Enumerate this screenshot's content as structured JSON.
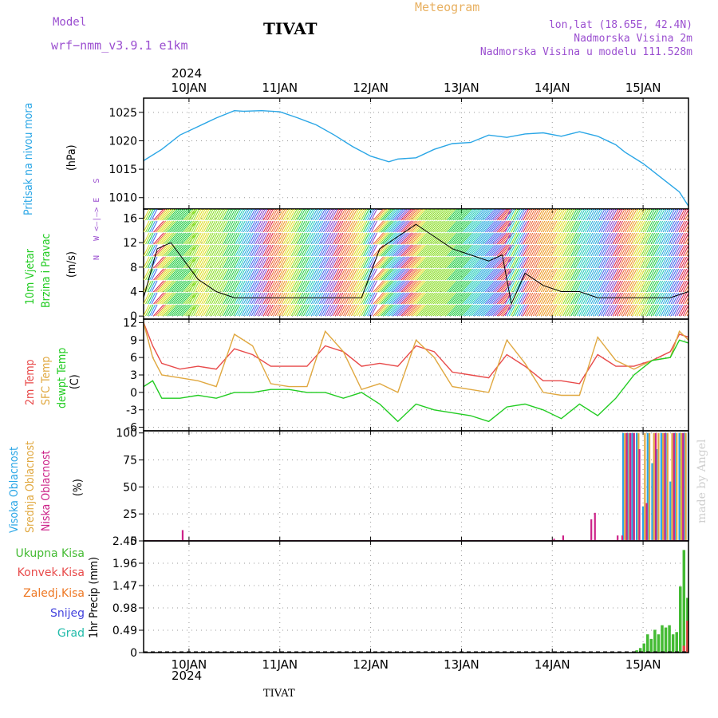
{
  "header": {
    "model_label": "Model",
    "model_name": "wrf−nmm_v3.9.1  e1km",
    "station": "TIVAT",
    "meteogram": "Meteogram",
    "lonlat": "lon,lat (18.65E, 42.4N)",
    "elevation": "Nadmorska Visina 2m",
    "model_elevation": "Nadmorska Visina u modelu 111.528m",
    "year": "2024",
    "credit": "made by Angel"
  },
  "footer": {
    "year": "2024",
    "station": "TIVAT"
  },
  "colors": {
    "pressure": "#2aa6e6",
    "temp2m": "#e84a4a",
    "sfc": "#e0a840",
    "dewpt": "#22cc22",
    "high_cloud": "#2aa6e6",
    "mid_cloud": "#e0a840",
    "low_cloud": "#cc2288",
    "total_precip": "#44bb33",
    "conv_precip": "#e84a4a",
    "frozen_precip": "#ee7722",
    "snow": "#4444dd",
    "graupel": "#22bbaa",
    "header_purple": "#9b4fd0",
    "header_orange": "#e8b060"
  },
  "chart_data": [
    {
      "type": "line",
      "ylabel": [
        "Pritisak na nivou mora",
        "(hPa)"
      ],
      "yticks": [
        1010,
        1015,
        1020,
        1025
      ],
      "ylim": [
        1008,
        1027.5
      ],
      "x_ticks": [
        "10JAN",
        "11JAN",
        "12JAN",
        "13JAN",
        "14JAN",
        "15JAN"
      ],
      "grid": true,
      "series": [
        {
          "name": "Pritisak na nivou mora",
          "x": [
            -0.5,
            -0.3,
            -0.1,
            0.1,
            0.3,
            0.5,
            0.6,
            0.8,
            1.0,
            1.2,
            1.4,
            1.6,
            1.8,
            2.0,
            2.2,
            2.3,
            2.5,
            2.7,
            2.9,
            3.1,
            3.3,
            3.5,
            3.7,
            3.9,
            4.1,
            4.3,
            4.5,
            4.7,
            4.8,
            5.0,
            5.2,
            5.4,
            5.5
          ],
          "y": [
            1016.5,
            1018.5,
            1021.0,
            1022.5,
            1024.0,
            1025.3,
            1025.2,
            1025.3,
            1025.1,
            1024.0,
            1022.8,
            1021.0,
            1019.0,
            1017.3,
            1016.3,
            1016.8,
            1017.0,
            1018.5,
            1019.5,
            1019.7,
            1021.0,
            1020.6,
            1021.2,
            1021.4,
            1020.8,
            1021.6,
            1020.8,
            1019.3,
            1018.0,
            1016.0,
            1013.5,
            1011.0,
            1008.5
          ]
        }
      ]
    },
    {
      "type": "line",
      "ylabel": [
        "10m Vjetar",
        "Brzina i Pravac",
        "(m/s)"
      ],
      "compass": "N   W <–|–> E   S",
      "yticks": [
        0,
        4,
        8,
        12,
        16
      ],
      "ylim": [
        -0.5,
        17.5
      ],
      "grid": true,
      "barb_colors": [
        "#dd2244",
        "#ee6633",
        "#ee9922",
        "#dddd22",
        "#88dd22",
        "#22cc44",
        "#22ccbb",
        "#22aadd",
        "#4466ee",
        "#8844cc"
      ],
      "series": [
        {
          "name": "10m Vjetar",
          "x": [
            -0.5,
            -0.35,
            -0.2,
            -0.05,
            0.1,
            0.3,
            0.5,
            0.7,
            0.9,
            1.1,
            1.3,
            1.5,
            1.7,
            1.9,
            2.0,
            2.1,
            2.3,
            2.5,
            2.7,
            2.9,
            3.1,
            3.3,
            3.45,
            3.55,
            3.7,
            3.9,
            4.1,
            4.3,
            4.5,
            4.7,
            4.9,
            5.1,
            5.3,
            5.5
          ],
          "y": [
            3,
            11,
            12,
            9,
            6,
            4,
            3,
            3,
            3,
            3,
            3,
            3,
            3,
            3,
            7,
            11,
            13,
            15,
            13,
            11,
            10,
            9,
            10,
            2,
            7,
            5,
            4,
            4,
            3,
            3,
            3,
            3,
            3,
            4
          ]
        }
      ]
    },
    {
      "type": "line",
      "ylabel": [
        "2m Temp",
        "SFC Temp",
        "dewpt Temp",
        "(C)"
      ],
      "yticks": [
        -6,
        -3,
        0,
        3,
        6,
        9,
        12
      ],
      "ylim": [
        -6.6,
        12.6
      ],
      "grid": true,
      "series": [
        {
          "name": "2m Temp",
          "x": [
            -0.5,
            -0.4,
            -0.3,
            -0.1,
            0.1,
            0.3,
            0.5,
            0.7,
            0.9,
            1.1,
            1.3,
            1.5,
            1.7,
            1.9,
            2.1,
            2.3,
            2.5,
            2.7,
            2.9,
            3.1,
            3.3,
            3.5,
            3.7,
            3.9,
            4.1,
            4.3,
            4.5,
            4.7,
            4.9,
            5.1,
            5.3,
            5.4,
            5.5
          ],
          "y": [
            12,
            8,
            5,
            4,
            4.5,
            4,
            7.5,
            6.5,
            4.5,
            4.5,
            4.5,
            8,
            7,
            4.5,
            5,
            4.5,
            8,
            7,
            3.5,
            3,
            2.5,
            6.5,
            4.5,
            2,
            2,
            1.5,
            6.5,
            4.5,
            4.5,
            5.5,
            7,
            10,
            9.5
          ]
        },
        {
          "name": "SFC Temp",
          "x": [
            -0.5,
            -0.4,
            -0.3,
            -0.1,
            0.1,
            0.3,
            0.5,
            0.7,
            0.9,
            1.1,
            1.3,
            1.5,
            1.7,
            1.9,
            2.1,
            2.3,
            2.5,
            2.7,
            2.9,
            3.1,
            3.3,
            3.5,
            3.7,
            3.9,
            4.1,
            4.3,
            4.5,
            4.7,
            4.9,
            5.1,
            5.3,
            5.4,
            5.5
          ],
          "y": [
            12,
            6,
            3,
            2.5,
            2,
            1,
            10,
            8,
            1.5,
            1,
            1,
            10.5,
            7,
            0.5,
            1.5,
            0,
            9,
            6,
            1,
            0.5,
            0,
            9,
            5,
            0,
            -0.5,
            -0.5,
            9.5,
            5.5,
            4,
            5.5,
            6,
            10.5,
            9
          ]
        },
        {
          "name": "dewpt Temp",
          "x": [
            -0.5,
            -0.4,
            -0.3,
            -0.1,
            0.1,
            0.3,
            0.5,
            0.7,
            0.9,
            1.1,
            1.3,
            1.5,
            1.7,
            1.9,
            2.1,
            2.3,
            2.5,
            2.7,
            2.9,
            3.1,
            3.3,
            3.5,
            3.7,
            3.9,
            4.1,
            4.3,
            4.5,
            4.7,
            4.9,
            5.1,
            5.3,
            5.4,
            5.5
          ],
          "y": [
            1,
            2,
            -1,
            -1,
            -0.5,
            -1,
            0,
            0,
            0.5,
            0.5,
            0,
            0,
            -1,
            0,
            -2,
            -5,
            -2,
            -3,
            -3.5,
            -4,
            -5,
            -2.5,
            -2,
            -3,
            -4.5,
            -2,
            -4,
            -1,
            3,
            5.5,
            6,
            9,
            8.5
          ]
        }
      ]
    },
    {
      "type": "bar",
      "ylabel": [
        "Visoka Oblacnost",
        "Srednja Oblacnost",
        "Niska Oblacnost",
        "(%)"
      ],
      "yticks": [
        0,
        25,
        50,
        75,
        100
      ],
      "ylim": [
        0,
        102
      ],
      "grid": true,
      "series": [
        {
          "name": "Visoka Oblacnost",
          "x": [
            4.78,
            4.83,
            4.88,
            4.93,
            5.0,
            5.05,
            5.1,
            5.15,
            5.2,
            5.25,
            5.3,
            5.35,
            5.4,
            5.45,
            5.5
          ],
          "values": [
            100,
            100,
            100,
            100,
            32,
            100,
            72,
            85,
            100,
            100,
            55,
            100,
            100,
            100,
            100
          ]
        },
        {
          "name": "Srednja Oblacnost",
          "x": [
            4.8,
            4.85,
            4.9,
            4.95,
            5.02,
            5.07,
            5.12,
            5.17,
            5.22,
            5.27,
            5.32,
            5.37,
            5.42,
            5.47
          ],
          "values": [
            100,
            100,
            100,
            100,
            100,
            100,
            100,
            100,
            100,
            100,
            100,
            100,
            100,
            100
          ]
        },
        {
          "name": "Niska Oblacnost",
          "x": [
            -0.07,
            4.02,
            4.12,
            4.43,
            4.47,
            4.72,
            4.77,
            4.82,
            4.86,
            4.9,
            4.96,
            5.04,
            5.14,
            5.24,
            5.34,
            5.44
          ],
          "values": [
            10,
            2,
            5,
            20,
            26,
            5,
            5,
            100,
            100,
            100,
            85,
            35,
            100,
            100,
            100,
            100
          ]
        }
      ]
    },
    {
      "type": "bar",
      "ylabel": [
        "1hr Precip (mm)"
      ],
      "legend": [
        "Ukupna Kisa",
        "Konvek.Kisa",
        "Zaledj.Kisa",
        "Snijeg",
        "Grad"
      ],
      "yticks": [
        0,
        0.49,
        0.98,
        1.47,
        1.96,
        2.45
      ],
      "ylim": [
        0,
        2.45
      ],
      "grid": true,
      "series": [
        {
          "name": "Ukupna Kisa",
          "x": [
            4.93,
            4.97,
            5.01,
            5.05,
            5.09,
            5.13,
            5.17,
            5.21,
            5.25,
            5.29,
            5.33,
            5.37,
            5.41,
            5.45,
            5.49
          ],
          "values": [
            0.05,
            0.1,
            0.2,
            0.4,
            0.3,
            0.5,
            0.4,
            0.6,
            0.55,
            0.6,
            0.4,
            0.45,
            1.45,
            2.25,
            1.2
          ]
        },
        {
          "name": "Konvek.Kisa",
          "x": [
            5.45,
            5.49
          ],
          "values": [
            0.15,
            0.7
          ]
        }
      ]
    }
  ]
}
